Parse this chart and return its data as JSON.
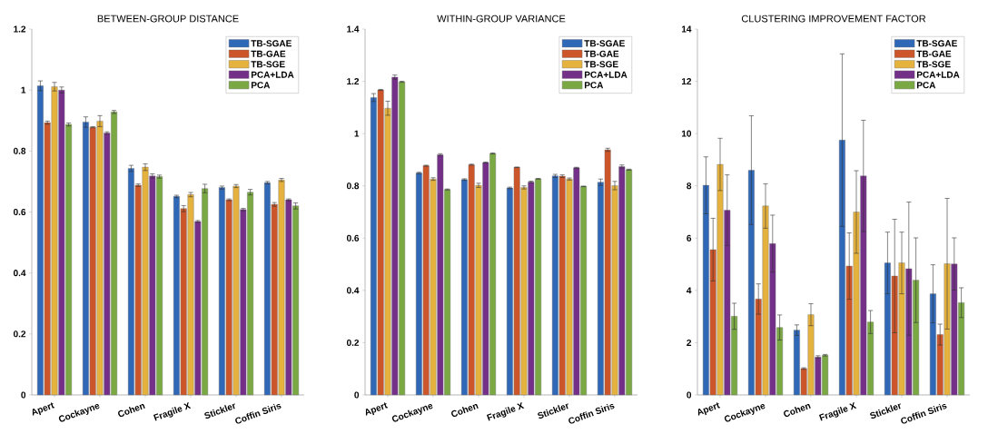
{
  "chart_data": [
    {
      "type": "bar",
      "title": "BETWEEN-GROUP DISTANCE",
      "categories": [
        "Apert",
        "Cockayne",
        "Cohen",
        "Fragile X",
        "Stickler",
        "Coffin Siris"
      ],
      "ylim": [
        0,
        1.2
      ],
      "yticks": [
        0,
        0.2,
        0.4,
        0.6,
        0.8,
        1,
        1.2
      ],
      "legend": "top right",
      "series": [
        {
          "name": "TB-SGAE",
          "color": "#3068b8",
          "values": [
            1.014,
            0.895,
            0.743,
            0.651,
            0.68,
            0.696
          ],
          "errors": [
            0.016,
            0.017,
            0.01,
            0.004,
            0.005,
            0.004
          ]
        },
        {
          "name": "TB-GAE",
          "color": "#cc5629",
          "values": [
            0.893,
            0.878,
            0.688,
            0.611,
            0.64,
            0.625
          ],
          "errors": [
            0.005,
            0.002,
            0.004,
            0.01,
            0.003,
            0.006
          ]
        },
        {
          "name": "TB-SGE",
          "color": "#e6b23e",
          "values": [
            1.011,
            0.898,
            0.747,
            0.657,
            0.685,
            0.705
          ],
          "errors": [
            0.014,
            0.018,
            0.011,
            0.007,
            0.005,
            0.005
          ]
        },
        {
          "name": "PCA+LDA",
          "color": "#742f89",
          "values": [
            1.0,
            0.859,
            0.718,
            0.569,
            0.608,
            0.64
          ],
          "errors": [
            0.01,
            0.004,
            0.007,
            0.003,
            0.004,
            0.003
          ]
        },
        {
          "name": "PCA",
          "color": "#7aa843",
          "values": [
            0.887,
            0.928,
            0.716,
            0.677,
            0.665,
            0.62
          ],
          "errors": [
            0.005,
            0.005,
            0.005,
            0.014,
            0.009,
            0.01
          ]
        }
      ]
    },
    {
      "type": "bar",
      "title": "WITHIN-GROUP VARIANCE",
      "categories": [
        "Apert",
        "Cockayne",
        "Cohen",
        "Fragile X",
        "Stickler",
        "Coffin Siris"
      ],
      "ylim": [
        0,
        1.4
      ],
      "yticks": [
        0,
        0.2,
        0.4,
        0.6,
        0.8,
        1,
        1.2,
        1.4
      ],
      "legend": "top right",
      "series": [
        {
          "name": "TB-SGAE",
          "color": "#3068b8",
          "values": [
            1.138,
            0.849,
            0.824,
            0.792,
            0.838,
            0.814
          ],
          "errors": [
            0.015,
            0.003,
            0.003,
            0.003,
            0.006,
            0.012
          ]
        },
        {
          "name": "TB-GAE",
          "color": "#cc5629",
          "values": [
            1.167,
            0.877,
            0.881,
            0.871,
            0.837,
            0.938
          ],
          "errors": [
            0.002,
            0.002,
            0.002,
            0.001,
            0.005,
            0.006
          ]
        },
        {
          "name": "TB-SGE",
          "color": "#e6b23e",
          "values": [
            1.097,
            0.826,
            0.802,
            0.794,
            0.826,
            0.801
          ],
          "errors": [
            0.027,
            0.005,
            0.008,
            0.006,
            0.004,
            0.016
          ]
        },
        {
          "name": "PCA+LDA",
          "color": "#742f89",
          "values": [
            1.216,
            0.919,
            0.889,
            0.815,
            0.869,
            0.874
          ],
          "errors": [
            0.008,
            0.004,
            0.002,
            0.003,
            0.002,
            0.006
          ]
        },
        {
          "name": "PCA",
          "color": "#7aa843",
          "values": [
            1.198,
            0.786,
            0.924,
            0.827,
            0.798,
            0.862
          ],
          "errors": [
            0.002,
            0.002,
            0.002,
            0.001,
            0.001,
            0.002
          ]
        }
      ]
    },
    {
      "type": "bar",
      "title": "CLUSTERING IMPROVEMENT FACTOR",
      "categories": [
        "Apert",
        "Cockayne",
        "Cohen",
        "Fragile X",
        "Stickler",
        "Coffin Siris"
      ],
      "ylim": [
        0,
        14
      ],
      "yticks": [
        0,
        2,
        4,
        6,
        8,
        10,
        12,
        14
      ],
      "legend": "top right",
      "series": [
        {
          "name": "TB-SGAE",
          "color": "#3068b8",
          "values": [
            8.02,
            8.6,
            2.48,
            9.75,
            5.05,
            3.87
          ],
          "errors": [
            1.09,
            2.08,
            0.2,
            3.3,
            1.18,
            1.11
          ]
        },
        {
          "name": "TB-GAE",
          "color": "#cc5629",
          "values": [
            5.56,
            3.67,
            1.01,
            4.93,
            4.55,
            2.31
          ],
          "errors": [
            1.2,
            0.58,
            0.03,
            1.27,
            2.17,
            0.4
          ]
        },
        {
          "name": "TB-SGE",
          "color": "#e6b23e",
          "values": [
            8.82,
            7.23,
            3.07,
            7.0,
            5.05,
            5.02
          ],
          "errors": [
            1.0,
            0.85,
            0.42,
            1.58,
            1.18,
            2.5
          ]
        },
        {
          "name": "PCA+LDA",
          "color": "#742f89",
          "values": [
            7.07,
            5.79,
            1.45,
            8.38,
            4.83,
            5.01
          ],
          "errors": [
            1.35,
            1.09,
            0.05,
            2.13,
            2.55,
            1.0
          ]
        },
        {
          "name": "PCA",
          "color": "#7aa843",
          "values": [
            3.01,
            2.58,
            1.52,
            2.79,
            4.39,
            3.53
          ],
          "errors": [
            0.5,
            0.48,
            0.03,
            0.44,
            1.62,
            0.57
          ]
        }
      ]
    }
  ]
}
